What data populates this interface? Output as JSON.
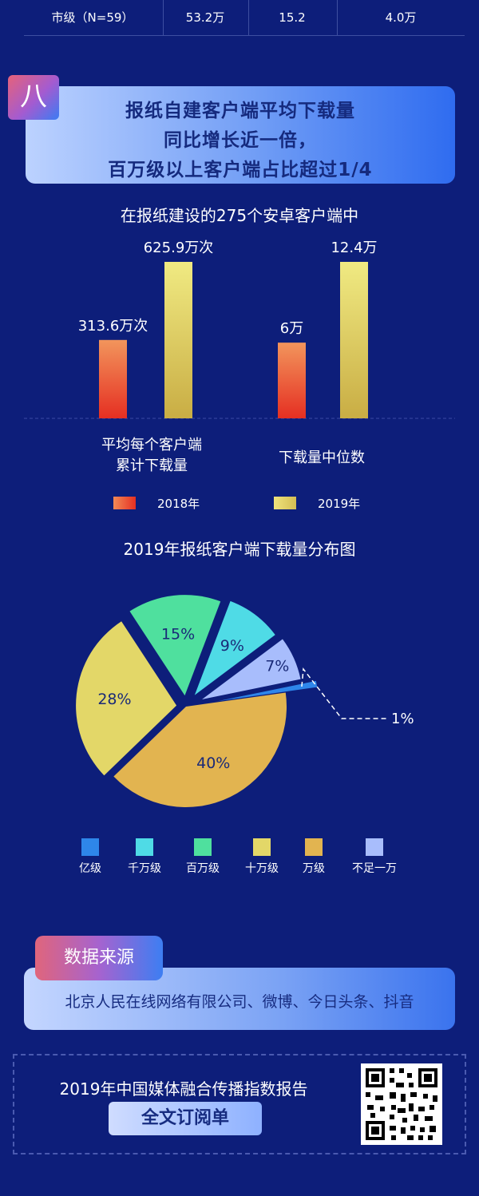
{
  "top_row": {
    "label": "市级（N=59）",
    "v1": "53.2万",
    "v2": "15.2",
    "v3": "4.0万"
  },
  "section": {
    "badge": "八",
    "title_lines": [
      "报纸自建客户端平均下载量",
      "同比增长近一倍，",
      "百万级以上客户端占比超过1/4"
    ]
  },
  "chart_data": [
    {
      "type": "bar",
      "title": "在报纸建设的275个安卓客户端中",
      "categories": [
        "平均每个客户端\n累计下载量",
        "下载量中位数"
      ],
      "series": [
        {
          "name": "2018年",
          "values": [
            313.6,
            6
          ],
          "labels": [
            "313.6万次",
            "6万"
          ],
          "color": "#e83a24"
        },
        {
          "name": "2019年",
          "values": [
            625.9,
            12.4
          ],
          "labels": [
            "625.9万次",
            "12.4万"
          ],
          "color": "#e9d86a"
        }
      ],
      "category_labels": [
        [
          "平均每个客户端",
          "累计下载量"
        ],
        [
          "下载量中位数"
        ]
      ],
      "grid": false,
      "legend_placement": "bottom"
    },
    {
      "type": "pie",
      "title": "2019年报纸客户端下载量分布图",
      "slices": [
        {
          "name": "亿级",
          "value": 1,
          "label": "1%",
          "color": "#2e86ea"
        },
        {
          "name": "千万级",
          "value": 9,
          "label": "9%",
          "color": "#4fdbe6"
        },
        {
          "name": "百万级",
          "value": 15,
          "label": "15%",
          "color": "#4fe09e"
        },
        {
          "name": "十万级",
          "value": 28,
          "label": "28%",
          "color": "#e3d768"
        },
        {
          "name": "万级",
          "value": 40,
          "label": "40%",
          "color": "#e2b450"
        },
        {
          "name": "不足一万",
          "value": 7,
          "label": "7%",
          "color": "#a8bdfc"
        }
      ],
      "legend_placement": "bottom"
    }
  ],
  "source": {
    "badge": "数据来源",
    "text": "北京人民在线网络有限公司、微博、今日头条、抖音"
  },
  "footer": {
    "title": "2019年中国媒体融合传播指数报告",
    "button": "全文订阅单"
  }
}
